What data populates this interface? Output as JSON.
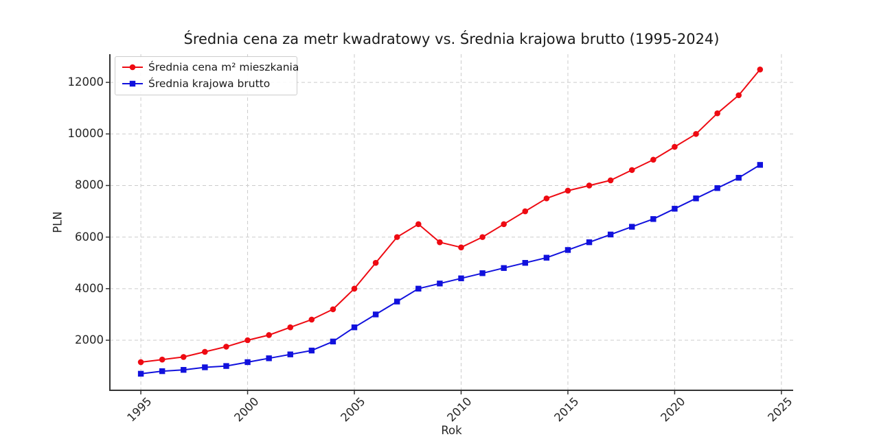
{
  "figure": {
    "title": "Średnia cena za metr kwadratowy vs. Średnia krajowa brutto (1995-2024)"
  },
  "chart_data": {
    "type": "line",
    "title": "Średnia cena za metr kwadratowy vs. Średnia krajowa brutto (1995-2024)",
    "xlabel": "Rok",
    "ylabel": "PLN",
    "x": [
      1995,
      1996,
      1997,
      1998,
      1999,
      2000,
      2001,
      2002,
      2003,
      2004,
      2005,
      2006,
      2007,
      2008,
      2009,
      2010,
      2011,
      2012,
      2013,
      2014,
      2015,
      2016,
      2017,
      2018,
      2019,
      2020,
      2021,
      2022,
      2023,
      2024
    ],
    "series": [
      {
        "name": "Średnia cena m² mieszkania",
        "color": "#ee0a12",
        "marker": "circle",
        "values": [
          1150,
          1250,
          1350,
          1550,
          1750,
          2000,
          2200,
          2500,
          2800,
          3200,
          4000,
          5000,
          6000,
          6500,
          5800,
          5600,
          6000,
          6500,
          7000,
          7500,
          7800,
          8000,
          8200,
          8600,
          9000,
          9500,
          10000,
          10800,
          11500,
          12500
        ]
      },
      {
        "name": "Średnia krajowa brutto",
        "color": "#0b0bе0",
        "marker": "square",
        "values": [
          700,
          800,
          850,
          950,
          1000,
          1150,
          1300,
          1450,
          1600,
          1950,
          2500,
          3000,
          3500,
          4000,
          4200,
          4400,
          4600,
          4800,
          5000,
          5200,
          5500,
          5800,
          6100,
          6400,
          6700,
          7100,
          7500,
          7900,
          8300,
          8800
        ]
      }
    ],
    "xticks": [
      1995,
      2000,
      2005,
      2010,
      2015,
      2020,
      2025
    ],
    "yticks": [
      2000,
      4000,
      6000,
      8000,
      10000,
      12000
    ],
    "xlim": [
      1993.55,
      2025.55
    ],
    "ylim": [
      58,
      13093
    ],
    "grid": true,
    "grid_style": "dashed",
    "grid_color": "#cccccc",
    "spine_color": "#333333",
    "legend_position": "upper-left"
  }
}
